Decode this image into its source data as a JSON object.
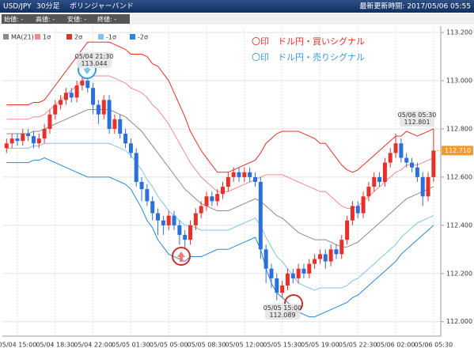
{
  "header": {
    "pair": "USD/JPY",
    "timeframe": "30分足",
    "indicator": "ボリンジャーバンド",
    "updated": "最新更新時間: 2017/05/06 05:55"
  },
  "ohlc_labels": [
    "始値: -",
    "高値: -",
    "安値: -",
    "終値: -"
  ],
  "signal_legend": [
    {
      "text": "〇印　ドル円・買いシグナル",
      "color": "#e8302a"
    },
    {
      "text": "〇印　ドル円・売りシグナル",
      "color": "#3a9ad9"
    }
  ],
  "chart_data": {
    "type": "candlestick",
    "categories": [
      null,
      null,
      "05/04 15:00",
      null,
      null,
      null,
      null,
      null,
      null,
      "05/04 18:30",
      null,
      null,
      null,
      null,
      null,
      null,
      "05/04 22:00",
      null,
      null,
      null,
      null,
      null,
      null,
      "05/05 01:30",
      null,
      null,
      null,
      null,
      null,
      null,
      "05/05 05:00",
      null,
      null,
      null,
      null,
      null,
      null,
      "05/05 08:30",
      null,
      null,
      null,
      null,
      null,
      null,
      "05/05 12:00",
      null,
      null,
      null,
      null,
      null,
      null,
      "05/05 15:30",
      null,
      null,
      null,
      null,
      null,
      null,
      "05/05 19:00",
      null,
      null,
      null,
      null,
      null,
      null,
      "05/05 22:30",
      null,
      null,
      null,
      null,
      null,
      null,
      "05/06 02:00",
      null,
      null,
      null,
      null,
      null,
      null,
      "05/06 05:30"
    ],
    "open": [
      112.72,
      112.74,
      112.76,
      112.75,
      112.78,
      112.77,
      112.74,
      112.76,
      112.8,
      112.86,
      112.9,
      112.92,
      112.95,
      112.93,
      112.98,
      113.0,
      112.97,
      112.9,
      112.86,
      112.92,
      112.8,
      112.84,
      112.78,
      112.74,
      112.7,
      112.58,
      112.55,
      112.5,
      112.45,
      112.42,
      112.4,
      112.44,
      112.4,
      112.36,
      112.34,
      112.4,
      112.45,
      112.48,
      112.52,
      112.5,
      112.53,
      112.56,
      112.6,
      112.62,
      112.6,
      112.62,
      112.6,
      112.58,
      112.3,
      112.22,
      112.18,
      112.12,
      112.15,
      112.2,
      112.18,
      112.22,
      112.2,
      112.24,
      112.26,
      112.28,
      112.25,
      112.3,
      112.28,
      112.34,
      112.42,
      112.48,
      112.45,
      112.52,
      112.56,
      112.6,
      112.58,
      112.66,
      112.7,
      112.74,
      112.68,
      112.66,
      112.64,
      112.6,
      112.52,
      112.6
    ],
    "high": [
      112.76,
      112.78,
      112.78,
      112.8,
      112.8,
      112.79,
      112.78,
      112.82,
      112.88,
      112.92,
      112.94,
      112.97,
      112.97,
      113.0,
      113.02,
      113.044,
      112.99,
      112.92,
      112.94,
      112.94,
      112.86,
      112.86,
      112.8,
      112.76,
      112.72,
      112.6,
      112.57,
      112.52,
      112.47,
      112.44,
      112.46,
      112.46,
      112.42,
      112.38,
      112.42,
      112.47,
      112.5,
      112.54,
      112.54,
      112.55,
      112.58,
      112.62,
      112.64,
      112.64,
      112.64,
      112.64,
      112.62,
      112.6,
      112.32,
      112.24,
      112.2,
      112.17,
      112.22,
      112.22,
      112.24,
      112.24,
      112.26,
      112.28,
      112.3,
      112.3,
      112.32,
      112.32,
      112.36,
      112.44,
      112.5,
      112.5,
      112.54,
      112.58,
      112.62,
      112.62,
      112.68,
      112.72,
      112.78,
      112.76,
      112.7,
      112.68,
      112.66,
      112.62,
      112.62,
      112.801
    ],
    "low": [
      112.7,
      112.72,
      112.73,
      112.73,
      112.75,
      112.72,
      112.72,
      112.74,
      112.78,
      112.84,
      112.88,
      112.9,
      112.91,
      112.91,
      112.96,
      112.95,
      112.86,
      112.82,
      112.84,
      112.78,
      112.78,
      112.76,
      112.72,
      112.68,
      112.56,
      112.5,
      112.48,
      112.42,
      112.36,
      112.36,
      112.38,
      112.38,
      112.32,
      112.3,
      112.32,
      112.38,
      112.43,
      112.46,
      112.48,
      112.48,
      112.51,
      112.54,
      112.58,
      112.58,
      112.58,
      112.58,
      112.56,
      112.26,
      112.16,
      112.14,
      112.089,
      112.1,
      112.13,
      112.16,
      112.16,
      112.18,
      112.18,
      112.22,
      112.24,
      112.22,
      112.23,
      112.26,
      112.26,
      112.32,
      112.4,
      112.43,
      112.43,
      112.5,
      112.54,
      112.56,
      112.56,
      112.64,
      112.68,
      112.66,
      112.64,
      112.62,
      112.58,
      112.48,
      112.5,
      112.58
    ],
    "close": [
      112.74,
      112.76,
      112.75,
      112.78,
      112.77,
      112.74,
      112.76,
      112.8,
      112.86,
      112.9,
      112.92,
      112.95,
      112.93,
      112.98,
      113.0,
      112.97,
      112.9,
      112.86,
      112.92,
      112.8,
      112.84,
      112.78,
      112.74,
      112.7,
      112.58,
      112.55,
      112.5,
      112.45,
      112.42,
      112.4,
      112.44,
      112.4,
      112.36,
      112.34,
      112.4,
      112.45,
      112.48,
      112.52,
      112.5,
      112.53,
      112.56,
      112.6,
      112.62,
      112.6,
      112.62,
      112.6,
      112.58,
      112.3,
      112.22,
      112.18,
      112.12,
      112.15,
      112.2,
      112.18,
      112.22,
      112.2,
      112.24,
      112.26,
      112.28,
      112.25,
      112.3,
      112.28,
      112.34,
      112.42,
      112.48,
      112.45,
      112.52,
      112.56,
      112.6,
      112.58,
      112.66,
      112.7,
      112.74,
      112.68,
      112.66,
      112.64,
      112.6,
      112.52,
      112.6,
      112.71
    ],
    "up_color": "#e8302a",
    "down_color": "#2a6fdb",
    "series": [
      {
        "name": "MA(21)",
        "color": "#8a8a8a",
        "values": [
          112.78,
          112.78,
          112.78,
          112.78,
          112.78,
          112.79,
          112.79,
          112.8,
          112.81,
          112.82,
          112.83,
          112.84,
          112.85,
          112.86,
          112.87,
          112.88,
          112.88,
          112.88,
          112.88,
          112.88,
          112.87,
          112.86,
          112.85,
          112.83,
          112.81,
          112.79,
          112.76,
          112.73,
          112.7,
          112.67,
          112.64,
          112.61,
          112.58,
          112.55,
          112.53,
          112.51,
          112.49,
          112.48,
          112.47,
          112.46,
          112.46,
          112.46,
          112.47,
          112.48,
          112.49,
          112.5,
          112.51,
          112.5,
          112.48,
          112.46,
          112.44,
          112.43,
          112.41,
          112.39,
          112.37,
          112.36,
          112.35,
          112.34,
          112.34,
          112.34,
          112.33,
          112.32,
          112.31,
          112.31,
          112.32,
          112.33,
          112.35,
          112.37,
          112.39,
          112.41,
          112.43,
          112.45,
          112.47,
          112.49,
          112.51,
          112.52,
          112.53,
          112.54,
          112.55,
          112.56
        ]
      },
      {
        "name": "1σ",
        "color": "#f28b8b",
        "values": [
          112.84,
          112.84,
          112.84,
          112.84,
          112.84,
          112.85,
          112.85,
          112.86,
          112.88,
          112.9,
          112.92,
          112.94,
          112.96,
          112.98,
          113.0,
          113.02,
          113.02,
          113.02,
          113.02,
          113.02,
          113.01,
          113.0,
          112.99,
          112.97,
          112.96,
          112.95,
          112.93,
          112.9,
          112.88,
          112.85,
          112.82,
          112.78,
          112.74,
          112.7,
          112.66,
          112.63,
          112.6,
          112.58,
          112.56,
          112.54,
          112.54,
          112.54,
          112.55,
          112.56,
          112.57,
          112.58,
          112.59,
          112.6,
          112.61,
          112.61,
          112.61,
          112.61,
          112.6,
          112.59,
          112.58,
          112.57,
          112.56,
          112.55,
          112.54,
          112.54,
          112.52,
          112.5,
          112.48,
          112.47,
          112.47,
          112.48,
          112.5,
          112.52,
          112.54,
          112.56,
          112.58,
          112.6,
          112.62,
          112.63,
          112.65,
          112.65,
          112.65,
          112.66,
          112.67,
          112.68
        ]
      },
      {
        "name": "2σ",
        "color": "#e8302a",
        "values": [
          112.9,
          112.9,
          112.9,
          112.9,
          112.9,
          112.91,
          112.91,
          112.92,
          112.95,
          112.98,
          113.01,
          113.04,
          113.07,
          113.1,
          113.13,
          113.16,
          113.16,
          113.16,
          113.16,
          113.16,
          113.15,
          113.14,
          113.13,
          113.11,
          113.11,
          113.11,
          113.1,
          113.07,
          113.06,
          113.03,
          113.0,
          112.95,
          112.9,
          112.85,
          112.79,
          112.75,
          112.71,
          112.68,
          112.65,
          112.62,
          112.62,
          112.62,
          112.63,
          112.64,
          112.65,
          112.66,
          112.67,
          112.7,
          112.74,
          112.76,
          112.78,
          112.79,
          112.79,
          112.79,
          112.79,
          112.78,
          112.77,
          112.76,
          112.74,
          112.74,
          112.71,
          112.68,
          112.65,
          112.63,
          112.62,
          112.63,
          112.65,
          112.67,
          112.69,
          112.71,
          112.73,
          112.75,
          112.77,
          112.77,
          112.79,
          112.78,
          112.77,
          112.78,
          112.79,
          112.8
        ]
      },
      {
        "name": "-1σ",
        "color": "#7cc4ee",
        "values": [
          112.72,
          112.72,
          112.72,
          112.72,
          112.72,
          112.73,
          112.73,
          112.74,
          112.74,
          112.74,
          112.74,
          112.74,
          112.74,
          112.74,
          112.74,
          112.74,
          112.74,
          112.74,
          112.74,
          112.74,
          112.73,
          112.72,
          112.71,
          112.69,
          112.66,
          112.63,
          112.59,
          112.56,
          112.52,
          112.49,
          112.46,
          112.44,
          112.42,
          112.4,
          112.4,
          112.39,
          112.38,
          112.38,
          112.38,
          112.38,
          112.38,
          112.38,
          112.39,
          112.4,
          112.41,
          112.42,
          112.43,
          112.4,
          112.35,
          112.31,
          112.27,
          112.25,
          112.22,
          112.19,
          112.16,
          112.15,
          112.14,
          112.13,
          112.14,
          112.14,
          112.14,
          112.14,
          112.14,
          112.15,
          112.17,
          112.18,
          112.2,
          112.22,
          112.24,
          112.26,
          112.28,
          112.3,
          112.32,
          112.35,
          112.37,
          112.39,
          112.41,
          112.42,
          112.43,
          112.44
        ]
      },
      {
        "name": "-2σ",
        "color": "#2a86d8",
        "values": [
          112.66,
          112.66,
          112.66,
          112.66,
          112.66,
          112.67,
          112.67,
          112.68,
          112.67,
          112.66,
          112.65,
          112.64,
          112.63,
          112.62,
          112.61,
          112.6,
          112.6,
          112.6,
          112.6,
          112.6,
          112.59,
          112.58,
          112.57,
          112.55,
          112.51,
          112.47,
          112.42,
          112.39,
          112.34,
          112.31,
          112.28,
          112.27,
          112.26,
          112.25,
          112.27,
          112.27,
          112.27,
          112.28,
          112.29,
          112.3,
          112.3,
          112.3,
          112.31,
          112.32,
          112.33,
          112.34,
          112.35,
          112.3,
          112.22,
          112.16,
          112.12,
          112.1,
          112.08,
          112.06,
          112.04,
          112.03,
          112.02,
          112.02,
          112.03,
          112.04,
          112.05,
          112.06,
          112.07,
          112.08,
          112.1,
          112.11,
          112.13,
          112.15,
          112.17,
          112.19,
          112.21,
          112.23,
          112.25,
          112.28,
          112.3,
          112.32,
          112.34,
          112.36,
          112.38,
          112.4
        ]
      }
    ],
    "ylim": [
      111.94,
      113.22
    ],
    "yticks": [
      {
        "value": 112.0,
        "label": "112.000"
      },
      {
        "value": 112.2,
        "label": "112.200"
      },
      {
        "value": 112.4,
        "label": "112.400"
      },
      {
        "value": 112.6,
        "label": "112.600"
      },
      {
        "value": 112.8,
        "label": "112.800"
      },
      {
        "value": 113.0,
        "label": "113.000"
      },
      {
        "value": 113.2,
        "label": "113.200"
      }
    ],
    "grid": true,
    "last_price": {
      "value": 112.71,
      "label": "112.710"
    },
    "annotations": [
      {
        "time": "05/04 21:30",
        "value": 113.044
      },
      {
        "time": "05/06 05:30",
        "value": 112.801
      },
      {
        "time": "05/05 15:00",
        "value": 112.089
      }
    ]
  }
}
